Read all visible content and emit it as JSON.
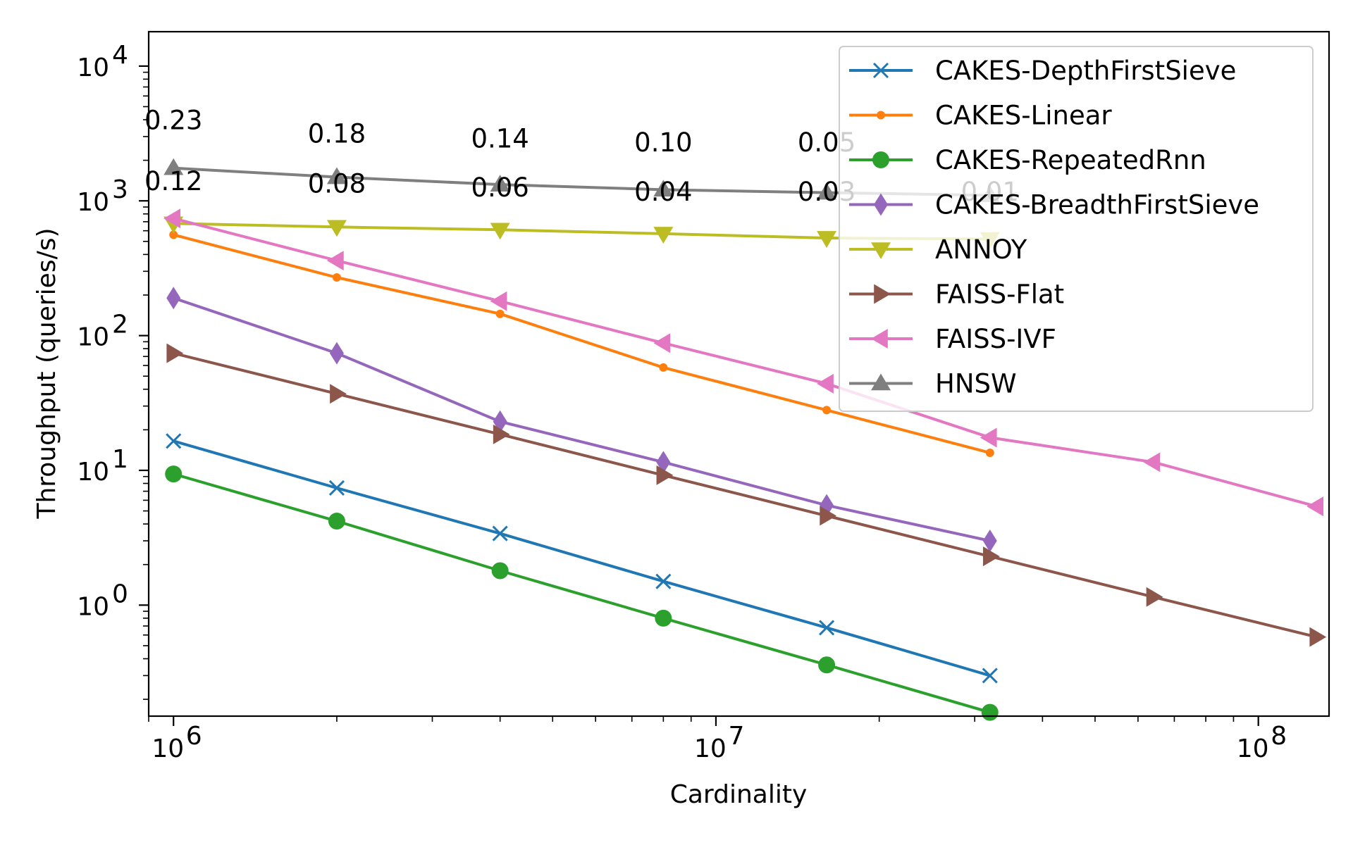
{
  "chart_data": {
    "type": "line",
    "title": "",
    "xlabel": "Cardinality",
    "ylabel": "Throughput (queries/s)",
    "xscale": "log",
    "yscale": "log",
    "xlim": [
      900000,
      135000000
    ],
    "ylim": [
      0.15,
      18000
    ],
    "x_ticks": [
      {
        "value": 1000000,
        "base": "10",
        "exp": "6"
      },
      {
        "value": 10000000,
        "base": "10",
        "exp": "7"
      },
      {
        "value": 100000000,
        "base": "10",
        "exp": "8"
      }
    ],
    "y_ticks": [
      {
        "value": 1,
        "base": "10",
        "exp": "0"
      },
      {
        "value": 10,
        "base": "10",
        "exp": "1"
      },
      {
        "value": 100,
        "base": "10",
        "exp": "2"
      },
      {
        "value": 1000,
        "base": "10",
        "exp": "3"
      },
      {
        "value": 10000,
        "base": "10",
        "exp": "4"
      }
    ],
    "legend_position": "top-right",
    "series": [
      {
        "name": "CAKES-DepthFirstSieve",
        "color": "#1f77b4",
        "marker": "x",
        "x": [
          1000000,
          2000000,
          4000000,
          8000000,
          16000000,
          32000000
        ],
        "y": [
          16.5,
          7.4,
          3.4,
          1.5,
          0.68,
          0.3
        ]
      },
      {
        "name": "CAKES-Linear",
        "color": "#ff7f0e",
        "marker": "point",
        "x": [
          1000000,
          2000000,
          4000000,
          8000000,
          16000000,
          32000000
        ],
        "y": [
          560,
          270,
          145,
          58,
          28,
          13.5
        ]
      },
      {
        "name": "CAKES-RepeatedRnn",
        "color": "#2ca02c",
        "marker": "circle",
        "x": [
          1000000,
          2000000,
          4000000,
          8000000,
          16000000,
          32000000
        ],
        "y": [
          9.4,
          4.2,
          1.8,
          0.8,
          0.36,
          0.16
        ]
      },
      {
        "name": "CAKES-BreadthFirstSieve",
        "color": "#9467bd",
        "marker": "thin_diamond",
        "x": [
          1000000,
          2000000,
          4000000,
          8000000,
          16000000,
          32000000
        ],
        "y": [
          190,
          74,
          23,
          11.5,
          5.5,
          3.0
        ]
      },
      {
        "name": "ANNOY",
        "color": "#bcbd22",
        "marker": "triangle_down",
        "x": [
          1000000,
          2000000,
          4000000,
          8000000,
          16000000,
          32000000
        ],
        "y": [
          680,
          640,
          610,
          570,
          530,
          520
        ]
      },
      {
        "name": "FAISS-Flat",
        "color": "#8c564b",
        "marker": "triangle_right",
        "x": [
          1000000,
          2000000,
          4000000,
          8000000,
          16000000,
          32000000,
          64000000,
          128000000
        ],
        "y": [
          74,
          37,
          18.5,
          9.2,
          4.6,
          2.3,
          1.15,
          0.58
        ]
      },
      {
        "name": "FAISS-IVF",
        "color": "#e377c2",
        "marker": "triangle_left",
        "x": [
          1000000,
          2000000,
          4000000,
          8000000,
          16000000,
          32000000,
          64000000,
          128000000
        ],
        "y": [
          740,
          360,
          180,
          88,
          44,
          17.5,
          11.5,
          5.4
        ]
      },
      {
        "name": "HNSW",
        "color": "#7f7f7f",
        "marker": "triangle_up",
        "x": [
          1000000,
          2000000,
          4000000,
          8000000,
          16000000,
          32000000
        ],
        "y": [
          1750,
          1500,
          1320,
          1210,
          1150,
          1100
        ]
      }
    ],
    "annotations": [
      {
        "text": "0.23",
        "x": 1000000,
        "y": 3400
      },
      {
        "text": "0.18",
        "x": 2000000,
        "y": 2700
      },
      {
        "text": "0.14",
        "x": 4000000,
        "y": 2480
      },
      {
        "text": "0.10",
        "x": 8000000,
        "y": 2330
      },
      {
        "text": "0.05",
        "x": 16000000,
        "y": 2330
      },
      {
        "text": "0.12",
        "x": 1000000,
        "y": 1200
      },
      {
        "text": "0.08",
        "x": 2000000,
        "y": 1150
      },
      {
        "text": "0.06",
        "x": 4000000,
        "y": 1080
      },
      {
        "text": "0.04",
        "x": 8000000,
        "y": 1000
      },
      {
        "text": "0.03",
        "x": 16000000,
        "y": 1000
      },
      {
        "text": "0.01",
        "x": 32000000,
        "y": 1000
      }
    ]
  }
}
